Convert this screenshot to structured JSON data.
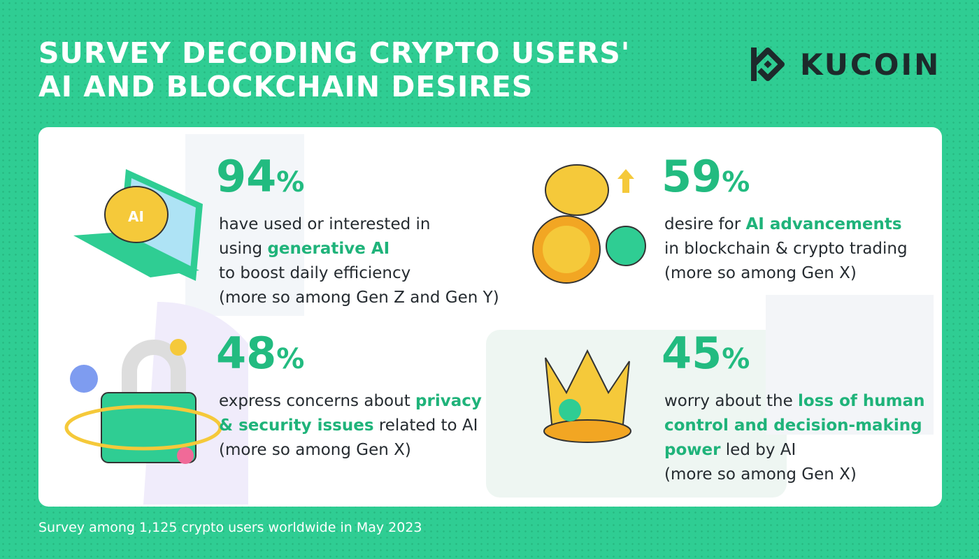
{
  "header": {
    "title": [
      "SURVEY DECODING CRYPTO USERS'",
      "AI AND BLOCKCHAIN DESIRES"
    ],
    "logo": "KUCOIN"
  },
  "stats": [
    {
      "value": "94",
      "unit": "%",
      "lines": [
        [
          {
            "text": "have used or interested in"
          }
        ],
        [
          {
            "text": "using "
          },
          {
            "text": "generative AI",
            "highlight": true
          }
        ],
        [
          {
            "text": "to boost daily efficiency"
          }
        ],
        [
          {
            "text": "(more so among Gen Z and Gen Y)"
          }
        ]
      ]
    },
    {
      "value": "59",
      "unit": "%",
      "lines": [
        [
          {
            "text": "desire for "
          },
          {
            "text": "AI advancements",
            "highlight": true
          }
        ],
        [
          {
            "text": "in blockchain & crypto trading"
          }
        ],
        [
          {
            "text": "(more so among Gen X)"
          }
        ]
      ]
    },
    {
      "value": "48",
      "unit": "%",
      "lines": [
        [
          {
            "text": "express concerns about "
          },
          {
            "text": "privacy",
            "highlight": true
          }
        ],
        [
          {
            "text": "& security issues",
            "highlight": true
          },
          {
            "text": " related to AI"
          }
        ],
        [
          {
            "text": "(more so among Gen X)"
          }
        ]
      ]
    },
    {
      "value": "45",
      "unit": "%",
      "lines": [
        [
          {
            "text": "worry about the "
          },
          {
            "text": "loss of human",
            "highlight": true
          }
        ],
        [
          {
            "text": "control and decision-making",
            "highlight": true
          }
        ],
        [
          {
            "text": "power",
            "highlight": true
          },
          {
            "text": " led by AI"
          }
        ],
        [
          {
            "text": "(more so among Gen X)"
          }
        ]
      ]
    }
  ],
  "footer": "Survey among 1,125 crypto users worldwide in May 2023"
}
